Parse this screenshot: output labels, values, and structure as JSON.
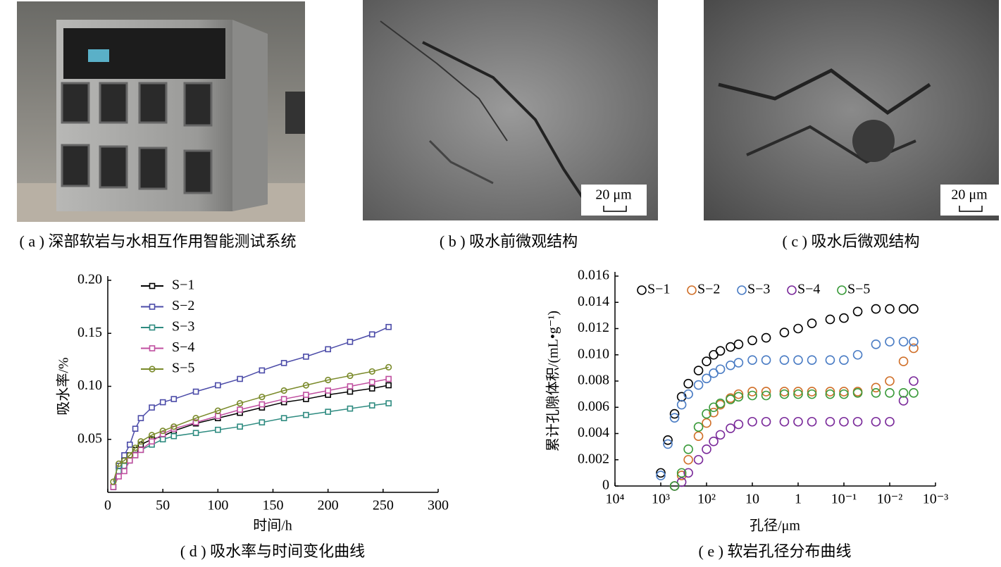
{
  "panels": [
    {
      "caption": "( a ) 深部软岩与水相互作用智能测试系统"
    },
    {
      "caption": "( b ) 吸水前微观结构",
      "scale_bar": "20 μm"
    },
    {
      "caption": "( c ) 吸水后微观结构",
      "scale_bar": "20 μm"
    }
  ],
  "chart_data": [
    {
      "type": "line",
      "title": "( d ) 吸水率与时间变化曲线",
      "x_label": "时间/h",
      "y_label": "吸水率/%",
      "x": [
        5,
        10,
        15,
        20,
        25,
        30,
        40,
        50,
        60,
        80,
        100,
        120,
        140,
        160,
        180,
        200,
        220,
        240,
        255
      ],
      "series": [
        {
          "name": "S−1",
          "color": "#000000",
          "marker": "square",
          "values": [
            0.005,
            0.025,
            0.03,
            0.035,
            0.04,
            0.045,
            0.05,
            0.053,
            0.058,
            0.065,
            0.07,
            0.075,
            0.08,
            0.085,
            0.088,
            0.092,
            0.095,
            0.098,
            0.101
          ]
        },
        {
          "name": "S−2",
          "color": "#4b4ba8",
          "marker": "square",
          "values": [
            0.005,
            0.025,
            0.035,
            0.045,
            0.06,
            0.07,
            0.08,
            0.085,
            0.088,
            0.095,
            0.101,
            0.107,
            0.115,
            0.122,
            0.128,
            0.135,
            0.142,
            0.149,
            0.156
          ]
        },
        {
          "name": "S−3",
          "color": "#2e8b80",
          "marker": "square",
          "values": [
            0.005,
            0.02,
            0.025,
            0.03,
            0.035,
            0.04,
            0.045,
            0.05,
            0.053,
            0.056,
            0.059,
            0.062,
            0.066,
            0.07,
            0.073,
            0.076,
            0.079,
            0.082,
            0.084
          ]
        },
        {
          "name": "S−4",
          "color": "#c04fa0",
          "marker": "square",
          "values": [
            0.005,
            0.015,
            0.02,
            0.03,
            0.035,
            0.04,
            0.048,
            0.055,
            0.06,
            0.066,
            0.072,
            0.078,
            0.083,
            0.088,
            0.092,
            0.096,
            0.1,
            0.104,
            0.107
          ]
        },
        {
          "name": "S−5",
          "color": "#7a8a2a",
          "marker": "circle",
          "values": [
            0.01,
            0.027,
            0.03,
            0.035,
            0.042,
            0.048,
            0.054,
            0.058,
            0.062,
            0.07,
            0.077,
            0.084,
            0.09,
            0.096,
            0.101,
            0.106,
            0.11,
            0.114,
            0.118
          ]
        }
      ],
      "xlim": [
        0,
        300
      ],
      "xticks": [
        0,
        50,
        100,
        150,
        200,
        250,
        300
      ],
      "ylim": [
        0,
        0.2
      ],
      "yticks": [
        0.05,
        {
          "value": 0.1,
          "label": "0.10"
        },
        0.15,
        {
          "value": 0.2,
          "label": "0.20"
        }
      ],
      "legend": "upper-left"
    },
    {
      "type": "scatter",
      "title": "( e ) 软岩孔径分布曲线",
      "x_label": "孔径/μm",
      "y_label": "累计孔隙体积/(mL•g⁻¹)",
      "xscale": "log",
      "x": [
        1000,
        700,
        500,
        350,
        250,
        150,
        100,
        70,
        50,
        30,
        20,
        10,
        5,
        2,
        1,
        0.5,
        0.2,
        0.1,
        0.05,
        0.02,
        0.01,
        0.005,
        0.003
      ],
      "series": [
        {
          "name": "S−1",
          "color": "#000000",
          "values": [
            0.001,
            0.0035,
            0.0055,
            0.0068,
            0.0078,
            0.0088,
            0.0095,
            0.01,
            0.0103,
            0.0106,
            0.0108,
            0.0111,
            0.0113,
            0.0117,
            0.012,
            0.0124,
            0.0127,
            0.0128,
            0.0133,
            0.0135,
            0.0135,
            0.0135,
            0.0135
          ]
        },
        {
          "name": "S−2",
          "color": "#d0702a",
          "values": [
            null,
            null,
            0,
            0.0008,
            0.002,
            0.0038,
            0.0048,
            0.0056,
            0.0062,
            0.0067,
            0.007,
            0.0072,
            0.0072,
            0.0072,
            0.0072,
            0.0072,
            0.0072,
            0.0072,
            0.0072,
            0.0075,
            0.008,
            0.0095,
            0.0105
          ]
        },
        {
          "name": "S−3",
          "color": "#4a7cc4",
          "values": [
            0.0008,
            0.0032,
            0.0052,
            0.0062,
            0.007,
            0.0077,
            0.0082,
            0.0086,
            0.0089,
            0.0092,
            0.0094,
            0.0096,
            0.0096,
            0.0096,
            0.0096,
            0.0096,
            0.0096,
            0.0096,
            0.01,
            0.0108,
            0.011,
            0.011,
            0.011
          ]
        },
        {
          "name": "S−4",
          "color": "#7a2a9a",
          "values": [
            null,
            null,
            0,
            0.0003,
            0.001,
            0.002,
            0.0028,
            0.0034,
            0.0039,
            0.0044,
            0.0047,
            0.0049,
            0.0049,
            0.0049,
            0.0049,
            0.0049,
            0.0049,
            0.0049,
            0.0049,
            0.0049,
            0.0049,
            0.0065,
            0.008
          ]
        },
        {
          "name": "S−5",
          "color": "#3a9a3a",
          "values": [
            null,
            null,
            0,
            0.001,
            0.0028,
            0.0045,
            0.0055,
            0.006,
            0.0063,
            0.0066,
            0.0068,
            0.0069,
            0.0069,
            0.007,
            0.007,
            0.007,
            0.007,
            0.007,
            0.0071,
            0.0071,
            0.0071,
            0.0071,
            0.0071
          ]
        }
      ],
      "xlim": [
        10000,
        0.001
      ],
      "xticks": [
        {
          "value": 10000,
          "label": "10⁴"
        },
        {
          "value": 1000,
          "label": "10³"
        },
        {
          "value": 100,
          "label": "10²"
        },
        10,
        1,
        {
          "value": 0.1,
          "label": "10⁻¹"
        },
        {
          "value": 0.01,
          "label": "10⁻²"
        },
        {
          "value": 0.001,
          "label": "10⁻³"
        }
      ],
      "ylim": [
        0,
        0.016
      ],
      "yticks": [
        0,
        0.002,
        0.004,
        0.006,
        0.008,
        {
          "value": 0.01,
          "label": "0.010"
        },
        0.012,
        0.014,
        0.016
      ],
      "legend": "top"
    }
  ]
}
